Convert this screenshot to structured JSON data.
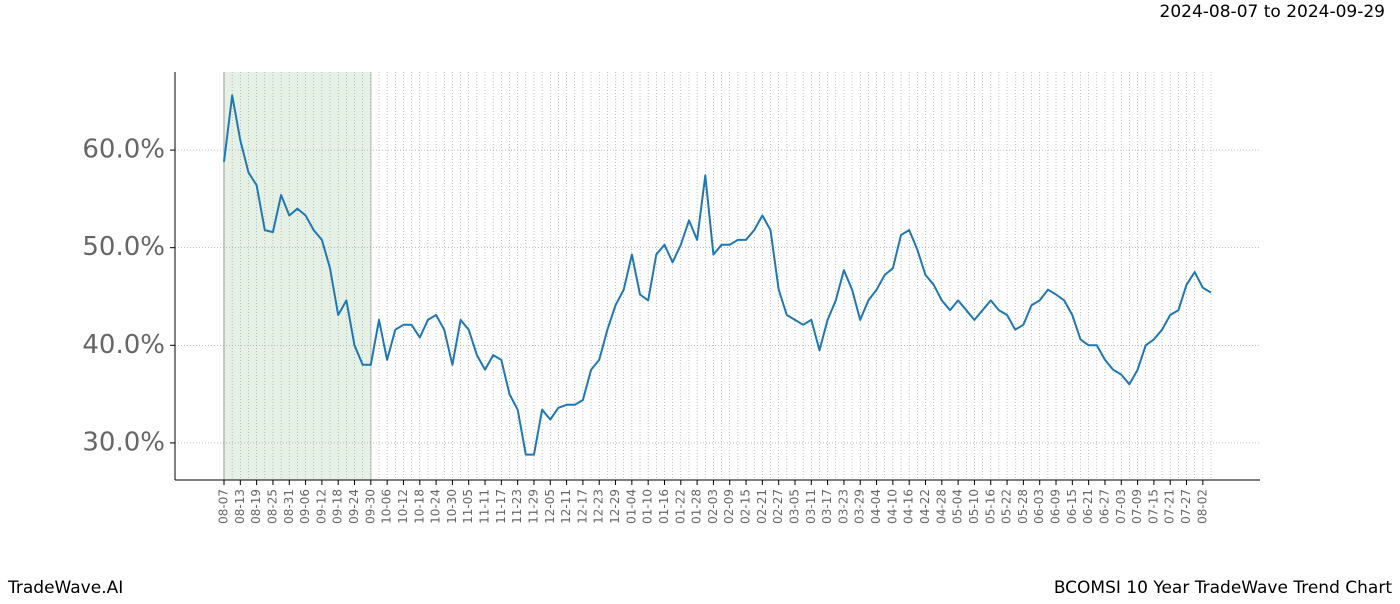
{
  "chart_data": {
    "type": "line",
    "title": "2024-08-07 to 2024-09-29",
    "footer_left": "TradeWave.AI",
    "footer_right": "BCOMSI 10 Year TradeWave Trend Chart",
    "categories": [
      "08-07",
      null,
      "08-13",
      null,
      "08-19",
      null,
      "08-25",
      null,
      "08-31",
      null,
      "09-06",
      null,
      "09-12",
      null,
      "09-18",
      null,
      "09-24",
      null,
      "09-30",
      null,
      "10-06",
      null,
      "10-12",
      null,
      "10-18",
      null,
      "10-24",
      null,
      "10-30",
      null,
      "11-05",
      null,
      "11-11",
      null,
      "11-17",
      null,
      "11-23",
      null,
      "11-29",
      null,
      "12-05",
      null,
      "12-11",
      null,
      "12-17",
      null,
      "12-23",
      null,
      "12-29",
      null,
      "01-04",
      null,
      "01-10",
      null,
      "01-16",
      null,
      "01-22",
      null,
      "01-28",
      null,
      "02-03",
      null,
      "02-09",
      null,
      "02-15",
      null,
      "02-21",
      null,
      "02-27",
      null,
      "03-05",
      null,
      "03-11",
      null,
      "03-17",
      null,
      "03-23",
      null,
      "03-29",
      null,
      "04-04",
      null,
      "04-10",
      null,
      "04-16",
      null,
      "04-22",
      null,
      "04-28",
      null,
      "05-04",
      null,
      "05-10",
      null,
      "05-16",
      null,
      "05-22",
      null,
      "05-28",
      null,
      "06-03",
      null,
      "06-09",
      null,
      "06-15",
      null,
      "06-21",
      null,
      "06-27",
      null,
      "07-03",
      null,
      "07-09",
      null,
      "07-15",
      null,
      "07-21",
      null,
      "07-27",
      null,
      "08-02",
      null
    ],
    "series": [
      {
        "color": "#1f77b4",
        "values": [
          58.8,
          65.6,
          61,
          57.7,
          56.4,
          51.8,
          51.6,
          55.4,
          53.3,
          54,
          53.3,
          51.8,
          50.8,
          47.9,
          43.1,
          44.6,
          40,
          38,
          38,
          42.6,
          38.5,
          41.6,
          42.1,
          42.1,
          40.8,
          42.6,
          43.1,
          41.6,
          38,
          42.6,
          41.6,
          39,
          37.5,
          39,
          38.5,
          35,
          33.4,
          28.8,
          28.8,
          33.4,
          32.4,
          33.6,
          33.9,
          33.9,
          34.4,
          37.5,
          38.5,
          41.6,
          44.1,
          45.7,
          49.3,
          45.2,
          44.6,
          49.3,
          50.3,
          48.5,
          50.3,
          52.8,
          50.8,
          57.4,
          49.3,
          50.3,
          50.3,
          50.8,
          50.8,
          51.8,
          53.3,
          51.8,
          45.7,
          43.1,
          42.6,
          42.1,
          42.6,
          39.5,
          42.6,
          44.6,
          47.7,
          45.7,
          42.6,
          44.6,
          45.7,
          47.2,
          47.9,
          51.3,
          51.8,
          49.8,
          47.2,
          46.2,
          44.6,
          43.6,
          44.6,
          43.6,
          42.6,
          43.6,
          44.6,
          43.6,
          43.1,
          41.6,
          42.1,
          44.1,
          44.6,
          45.7,
          45.2,
          44.6,
          43.1,
          40.6,
          40,
          40,
          38.5,
          37.5,
          37,
          36,
          37.5,
          40,
          40.6,
          41.6,
          43.1,
          43.6,
          46.2,
          47.5,
          45.9,
          45.4
        ]
      }
    ],
    "shaded_range": [
      "08-07",
      "09-30"
    ],
    "shade_color": "#e5f1e5",
    "ylim": [
      26.2,
      68
    ],
    "yticks": [
      {
        "value": 30,
        "label": "30.0%"
      },
      {
        "value": 40,
        "label": "40.0%"
      },
      {
        "value": 50,
        "label": "50.0%"
      },
      {
        "value": 60,
        "label": "60.0%"
      }
    ],
    "grid": true
  }
}
